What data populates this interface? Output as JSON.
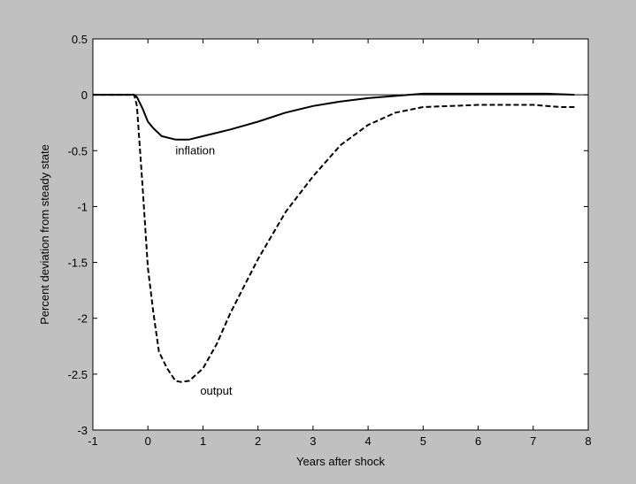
{
  "window": {
    "background": "#c0c0c0"
  },
  "chart_data": {
    "type": "line",
    "title": "",
    "xlabel": "Years after shock",
    "ylabel": "Percent deviation from steady state",
    "xlim": [
      -1,
      8
    ],
    "ylim": [
      -3,
      0.5
    ],
    "x_ticks": [
      -1,
      0,
      1,
      2,
      3,
      4,
      5,
      6,
      7,
      8
    ],
    "x_tick_labels": [
      "-1",
      "0",
      "1",
      "2",
      "3",
      "4",
      "5",
      "6",
      "7",
      "8"
    ],
    "y_ticks": [
      0.5,
      0,
      -0.5,
      -1,
      -1.5,
      -2,
      -2.5,
      -3
    ],
    "y_tick_labels": [
      "0.5",
      "0",
      "-0.5",
      "-1",
      "-1.5",
      "-2",
      "-2.5",
      "-3"
    ],
    "grid": false,
    "legend": "none",
    "zero_line": 0,
    "series": [
      {
        "name": "inflation",
        "style": "solid",
        "color": "#000000",
        "label_at": [
          0.5,
          -0.5
        ],
        "x": [
          -1,
          -0.25,
          -0.2,
          -0.1,
          0,
          0.1,
          0.25,
          0.5,
          0.75,
          1,
          1.25,
          1.5,
          2,
          2.5,
          3,
          3.5,
          4,
          4.5,
          5,
          5.5,
          6,
          6.5,
          7,
          7.25,
          7.75
        ],
        "y": [
          0,
          0,
          -0.02,
          -0.12,
          -0.24,
          -0.3,
          -0.37,
          -0.4,
          -0.4,
          -0.37,
          -0.34,
          -0.31,
          -0.24,
          -0.16,
          -0.1,
          -0.06,
          -0.03,
          -0.01,
          0.01,
          0.01,
          0.01,
          0.01,
          0.01,
          0.01,
          0
        ]
      },
      {
        "name": "output",
        "style": "dashed",
        "color": "#000000",
        "label_at": [
          0.95,
          -2.65
        ],
        "x": [
          -1,
          -0.25,
          -0.2,
          -0.1,
          0,
          0.1,
          0.2,
          0.35,
          0.5,
          0.6,
          0.75,
          1,
          1.25,
          1.5,
          2,
          2.5,
          3,
          3.5,
          4,
          4.5,
          5,
          5.5,
          6,
          6.5,
          7,
          7.25,
          7.5,
          7.75
        ],
        "y": [
          0,
          0,
          -0.1,
          -0.8,
          -1.55,
          -1.95,
          -2.3,
          -2.45,
          -2.56,
          -2.57,
          -2.56,
          -2.45,
          -2.23,
          -1.95,
          -1.47,
          -1.05,
          -0.73,
          -0.45,
          -0.27,
          -0.16,
          -0.11,
          -0.1,
          -0.09,
          -0.09,
          -0.09,
          -0.1,
          -0.11,
          -0.11
        ]
      }
    ]
  }
}
